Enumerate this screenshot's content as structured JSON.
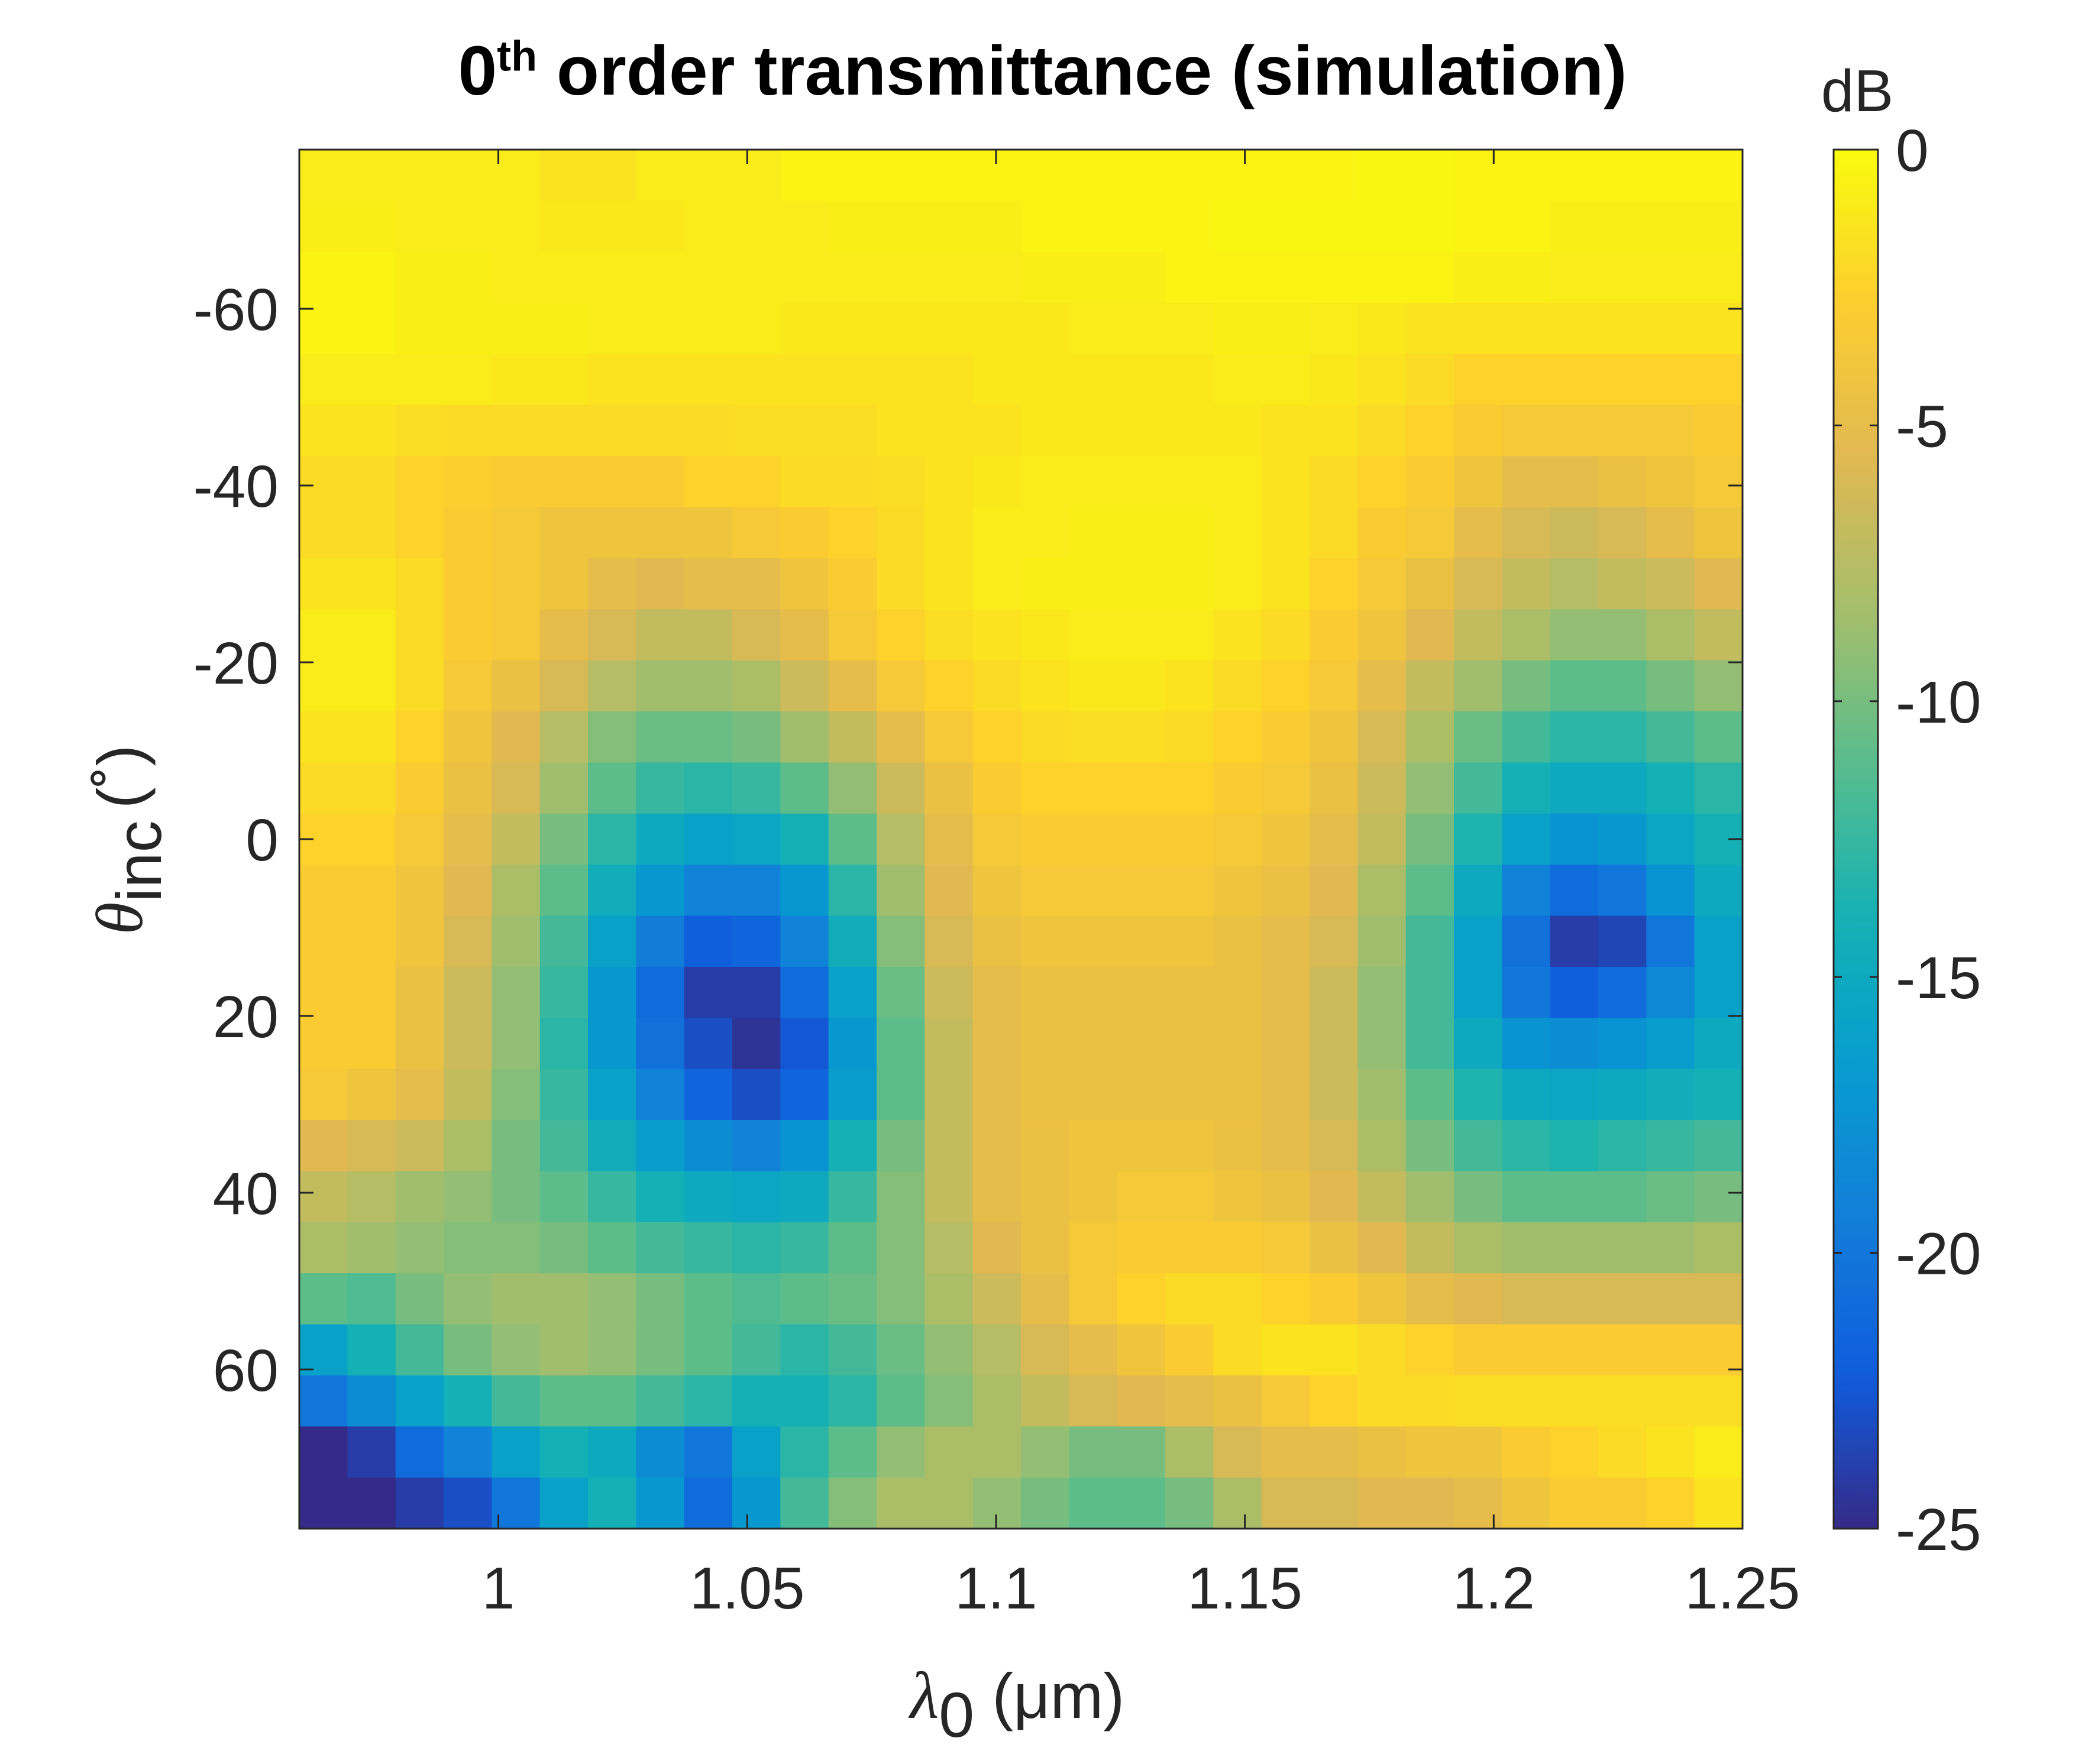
{
  "chart_data": {
    "type": "heatmap",
    "title_main": "0",
    "title_sup": "th",
    "title_rest": " order transmittance (simulation)",
    "xlabel_sym": "λ",
    "xlabel_sub": "0",
    "xlabel_unit": " (μm)",
    "ylabel_sym": "θ",
    "ylabel_sub": "inc",
    "ylabel_unit": "(˚)",
    "colorbar_label": "dB",
    "xlim": [
      0.96,
      1.25
    ],
    "ylim": [
      -78,
      78
    ],
    "y_reversed": true,
    "clim": [
      -25,
      0
    ],
    "colormap": "parula",
    "x_ticks": [
      1,
      1.05,
      1.1,
      1.15,
      1.2,
      1.25
    ],
    "x_tick_labels": [
      "1",
      "1.05",
      "1.1",
      "1.15",
      "1.2",
      "1.25"
    ],
    "y_ticks": [
      -60,
      -40,
      -20,
      0,
      20,
      40,
      60
    ],
    "y_tick_labels": [
      "-60",
      "-40",
      "-20",
      "0",
      "20",
      "40",
      "60"
    ],
    "cbar_ticks": [
      0,
      -5,
      -10,
      -15,
      -20,
      -25
    ],
    "cbar_tick_labels": [
      "0",
      "-5",
      "-10",
      "-15",
      "-20",
      "-25"
    ],
    "grid_x": [
      0.96,
      0.97,
      0.98,
      0.99,
      1.0,
      1.01,
      1.02,
      1.03,
      1.04,
      1.05,
      1.06,
      1.07,
      1.08,
      1.09,
      1.1,
      1.11,
      1.12,
      1.13,
      1.14,
      1.15,
      1.16,
      1.17,
      1.18,
      1.19,
      1.2,
      1.21,
      1.22,
      1.23,
      1.24,
      1.25
    ],
    "grid_y": [
      -78,
      -72,
      -66,
      -60,
      -54,
      -48,
      -42,
      -36,
      -30,
      -24,
      -18,
      -12,
      -6,
      0,
      6,
      12,
      18,
      24,
      30,
      36,
      42,
      48,
      54,
      60,
      66,
      72,
      78
    ],
    "values_dB": [
      [
        -1,
        -1,
        -1,
        -1,
        -1,
        -1.5,
        -1.5,
        -1,
        -1,
        -1,
        -0.5,
        -0.5,
        -0.5,
        -0.5,
        -0.5,
        -0.5,
        -0.5,
        -0.5,
        -0.5,
        -0.5,
        -0.5,
        -0.5,
        -0.3,
        -0.3,
        -0.5,
        -0.5,
        -0.5,
        -0.5,
        -0.5,
        -0.5
      ],
      [
        -0.8,
        -0.8,
        -1,
        -1,
        -1,
        -1.2,
        -1.2,
        -1.2,
        -1,
        -1,
        -1,
        -0.8,
        -0.8,
        -0.8,
        -0.8,
        -0.5,
        -0.5,
        -0.5,
        -0.5,
        -0.3,
        -0.3,
        -0.3,
        -0.3,
        -0.3,
        -0.5,
        -0.5,
        -0.8,
        -0.8,
        -0.8,
        -0.8
      ],
      [
        -0.5,
        -0.5,
        -0.8,
        -0.8,
        -1,
        -1,
        -1,
        -1,
        -1,
        -1,
        -1,
        -1,
        -1,
        -1,
        -1,
        -0.8,
        -0.8,
        -0.8,
        -0.5,
        -0.5,
        -0.5,
        -0.5,
        -0.5,
        -0.5,
        -0.8,
        -0.8,
        -1,
        -1,
        -1,
        -1
      ],
      [
        -0.5,
        -0.5,
        -0.8,
        -0.8,
        -0.8,
        -0.8,
        -1,
        -1,
        -1,
        -1,
        -1.2,
        -1.2,
        -1.2,
        -1.2,
        -1.2,
        -1.2,
        -1,
        -1,
        -1,
        -0.8,
        -0.8,
        -1,
        -1.2,
        -1.5,
        -1.5,
        -1.5,
        -1.5,
        -1.5,
        -1.5,
        -1.5
      ],
      [
        -1,
        -1,
        -1,
        -1,
        -1.2,
        -1.2,
        -1.5,
        -1.5,
        -1.5,
        -1.5,
        -1.5,
        -1.5,
        -1.5,
        -1.5,
        -1.2,
        -1.2,
        -1.2,
        -1.2,
        -1.2,
        -1,
        -1,
        -1.2,
        -1.5,
        -2,
        -2.5,
        -2.5,
        -2.5,
        -2.5,
        -2.5,
        -2.5
      ],
      [
        -1.5,
        -1.5,
        -1.8,
        -2,
        -2,
        -2,
        -2,
        -2,
        -2,
        -1.8,
        -1.8,
        -1.8,
        -1.5,
        -1.5,
        -1.5,
        -1.2,
        -1.2,
        -1.2,
        -1.2,
        -1.2,
        -1.5,
        -1.5,
        -2,
        -2.5,
        -3,
        -3.5,
        -3.5,
        -3.5,
        -3.5,
        -3
      ],
      [
        -2,
        -2,
        -2.5,
        -2.8,
        -3,
        -3,
        -3,
        -3,
        -2.5,
        -2.5,
        -2,
        -2,
        -1.8,
        -1.5,
        -1.2,
        -1,
        -1,
        -1,
        -1,
        -1,
        -1.5,
        -2,
        -2.5,
        -3,
        -4,
        -5,
        -5,
        -4.5,
        -4,
        -3.5
      ],
      [
        -2,
        -2,
        -2.5,
        -3,
        -3.5,
        -4,
        -4,
        -4,
        -4,
        -3.5,
        -3,
        -2.5,
        -2,
        -1.5,
        -1,
        -1,
        -0.8,
        -0.8,
        -0.8,
        -1,
        -1.5,
        -2,
        -3,
        -3.5,
        -5,
        -6,
        -6.5,
        -6,
        -5,
        -4
      ],
      [
        -1.5,
        -1.5,
        -2,
        -3,
        -3.5,
        -4,
        -5,
        -5.5,
        -5,
        -5,
        -4,
        -3,
        -2,
        -1.5,
        -1,
        -0.8,
        -0.8,
        -0.8,
        -0.8,
        -1,
        -1.5,
        -2.5,
        -3.5,
        -4.5,
        -6,
        -7,
        -7.5,
        -7,
        -6.5,
        -5.5
      ],
      [
        -1,
        -1,
        -2,
        -3,
        -3.5,
        -5,
        -6,
        -7,
        -7,
        -6,
        -5,
        -3.5,
        -2.5,
        -1.8,
        -1.5,
        -1.2,
        -1,
        -1,
        -1,
        -1.5,
        -2,
        -3,
        -4,
        -5.5,
        -7,
        -8,
        -9,
        -9,
        -8,
        -7
      ],
      [
        -1,
        -1,
        -2,
        -3.5,
        -4.5,
        -6,
        -7.5,
        -8.5,
        -8.5,
        -8,
        -6.5,
        -5,
        -3.5,
        -2.5,
        -2,
        -1.5,
        -1.2,
        -1.2,
        -1.5,
        -2,
        -2.5,
        -3.5,
        -5,
        -7,
        -8.5,
        -10,
        -11,
        -11,
        -10,
        -9
      ],
      [
        -1.5,
        -1.5,
        -2.5,
        -4,
        -5.5,
        -7.5,
        -9.5,
        -10.5,
        -10.5,
        -10,
        -8.5,
        -7,
        -5,
        -3.5,
        -2.5,
        -2,
        -1.8,
        -1.8,
        -2,
        -2.5,
        -3,
        -4,
        -6,
        -8,
        -10.5,
        -12,
        -13,
        -13,
        -12,
        -11
      ],
      [
        -2,
        -2,
        -3,
        -4.5,
        -6,
        -8.5,
        -11,
        -12.5,
        -13,
        -12.5,
        -11,
        -9,
        -6.5,
        -4.5,
        -3,
        -2.5,
        -2.5,
        -2.5,
        -2.5,
        -3,
        -3.5,
        -4.5,
        -6.5,
        -9,
        -12,
        -14,
        -15,
        -15,
        -14,
        -13
      ],
      [
        -2.5,
        -2.5,
        -3.5,
        -5,
        -7,
        -10,
        -13,
        -15,
        -16,
        -15.5,
        -14,
        -11,
        -7.5,
        -5,
        -3.5,
        -3,
        -3,
        -3,
        -3,
        -3.5,
        -4,
        -5,
        -7,
        -10,
        -13.5,
        -16,
        -17.5,
        -17,
        -15.5,
        -14
      ],
      [
        -3,
        -3,
        -4,
        -5.5,
        -8,
        -11,
        -14.5,
        -17,
        -19,
        -19,
        -17,
        -13,
        -8.5,
        -5.5,
        -4,
        -3.5,
        -3.5,
        -3.5,
        -3.5,
        -4,
        -4.5,
        -5.5,
        -8,
        -11,
        -15,
        -19,
        -21,
        -20,
        -17.5,
        -15
      ],
      [
        -3,
        -3,
        -4,
        -6,
        -8.5,
        -12,
        -16,
        -19.5,
        -22,
        -21.5,
        -19,
        -14.5,
        -9.5,
        -6,
        -4.5,
        -4,
        -4,
        -4,
        -4,
        -4.5,
        -5,
        -6,
        -8.5,
        -12,
        -16,
        -20.5,
        -24,
        -23.5,
        -20,
        -16
      ],
      [
        -3,
        -3,
        -4.5,
        -6.5,
        -9,
        -12.5,
        -17,
        -21,
        -24,
        -24,
        -21,
        -16,
        -10.5,
        -6.5,
        -5,
        -4.5,
        -4.5,
        -4.5,
        -4.5,
        -4.5,
        -5,
        -6.5,
        -9,
        -12,
        -16,
        -20,
        -22,
        -21,
        -18.5,
        -16
      ],
      [
        -3,
        -3,
        -4.5,
        -6.5,
        -9,
        -13,
        -17,
        -20.5,
        -23,
        -24.5,
        -22.5,
        -17,
        -11,
        -7,
        -5,
        -4.5,
        -4.5,
        -4.5,
        -4.5,
        -4.5,
        -5,
        -6.5,
        -9,
        -12,
        -15,
        -17.5,
        -18,
        -17.5,
        -16.5,
        -15
      ],
      [
        -3.5,
        -4,
        -5,
        -7,
        -9.5,
        -12.5,
        -16,
        -19,
        -21.5,
        -23,
        -21.5,
        -16.5,
        -11,
        -7,
        -5,
        -4.5,
        -4.5,
        -4.5,
        -4.5,
        -4.5,
        -5,
        -6.5,
        -8.5,
        -11,
        -13.5,
        -15,
        -15.5,
        -15,
        -14.5,
        -14
      ],
      [
        -5.5,
        -6,
        -6.5,
        -8,
        -10,
        -12,
        -14.5,
        -16.5,
        -18,
        -19,
        -17.5,
        -14,
        -10,
        -7,
        -5,
        -4.5,
        -4,
        -4,
        -4,
        -4.5,
        -5,
        -6,
        -8,
        -10,
        -12,
        -13,
        -13.5,
        -13,
        -12.5,
        -12
      ],
      [
        -7,
        -7.5,
        -8.5,
        -9,
        -10,
        -11,
        -12.5,
        -14,
        -15,
        -15.5,
        -15,
        -12.5,
        -9.5,
        -7,
        -5,
        -4.5,
        -4,
        -3.5,
        -3.5,
        -4,
        -4.5,
        -5.5,
        -7,
        -8.5,
        -10,
        -11,
        -11,
        -11,
        -10.5,
        -10
      ],
      [
        -8,
        -8.5,
        -9,
        -9.5,
        -9.5,
        -10,
        -11,
        -12,
        -12.5,
        -13,
        -12.5,
        -11,
        -9.5,
        -7.5,
        -5.5,
        -4.5,
        -3.5,
        -3,
        -3,
        -3,
        -3.5,
        -4.5,
        -5.5,
        -7,
        -8,
        -8.5,
        -8.5,
        -8.5,
        -8.5,
        -8
      ],
      [
        -11,
        -11.5,
        -10,
        -9,
        -8.5,
        -8.5,
        -9,
        -10,
        -11,
        -11.5,
        -11,
        -10.5,
        -9.5,
        -8,
        -6.5,
        -5,
        -3.5,
        -2.5,
        -2,
        -2,
        -2.5,
        -3,
        -4,
        -5,
        -5.5,
        -6,
        -6,
        -6,
        -6,
        -6
      ],
      [
        -16,
        -14,
        -12,
        -10,
        -9,
        -8.5,
        -9,
        -10,
        -11,
        -12,
        -13,
        -12,
        -10.5,
        -9,
        -7.5,
        -6,
        -5,
        -4,
        -3,
        -2,
        -1.5,
        -1.5,
        -2,
        -2.5,
        -3,
        -3,
        -3,
        -3,
        -3,
        -3
      ],
      [
        -20,
        -18,
        -16,
        -14,
        -12,
        -11,
        -11,
        -12,
        -13,
        -14,
        -14,
        -13,
        -11,
        -9.5,
        -8,
        -7,
        -6,
        -5.5,
        -5,
        -4.5,
        -3.5,
        -2.5,
        -2,
        -2,
        -1.8,
        -1.8,
        -1.8,
        -1.8,
        -1.8,
        -1.8
      ],
      [
        -25,
        -24,
        -21,
        -19,
        -16,
        -14,
        -15,
        -18,
        -20,
        -16,
        -13,
        -11,
        -9,
        -8,
        -8,
        -9,
        -10,
        -10,
        -8,
        -6,
        -5,
        -5,
        -4.5,
        -4,
        -4,
        -3,
        -2.5,
        -2,
        -1.5,
        -1
      ],
      [
        -25,
        -25,
        -24,
        -23,
        -20,
        -16,
        -14,
        -17,
        -21,
        -17,
        -12,
        -9.5,
        -8,
        -8,
        -9,
        -10,
        -11,
        -11,
        -10,
        -8,
        -6,
        -6,
        -5.5,
        -5.5,
        -5,
        -4,
        -3,
        -3,
        -2.5,
        -1.5
      ]
    ]
  }
}
